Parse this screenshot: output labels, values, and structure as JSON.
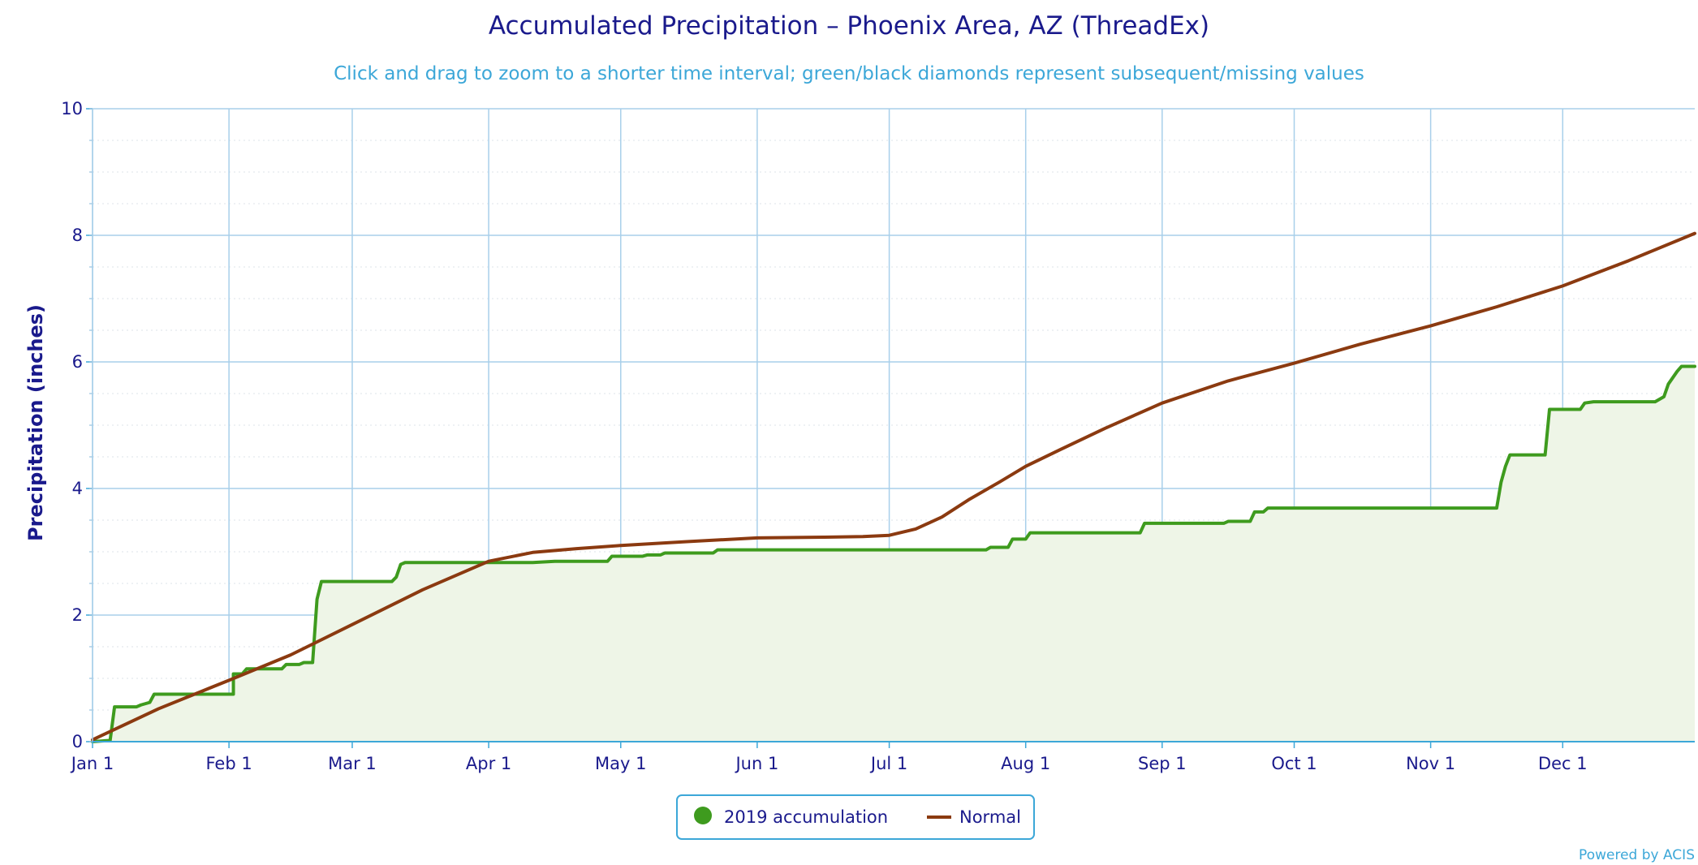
{
  "chart_data": {
    "type": "area",
    "title": "Accumulated Precipitation – Phoenix Area, AZ (ThreadEx)",
    "subtitle": "Click and drag to zoom to a shorter time interval; green/black diamonds represent subsequent/missing values",
    "xlabel": "",
    "ylabel": "Precipitation (inches)",
    "ylim": [
      0,
      10
    ],
    "yticks": [
      "0",
      "2",
      "4",
      "6",
      "8",
      "10"
    ],
    "xticks": [
      {
        "label": "Jan 1",
        "day": 0
      },
      {
        "label": "Feb 1",
        "day": 31
      },
      {
        "label": "Mar 1",
        "day": 59
      },
      {
        "label": "Apr 1",
        "day": 90
      },
      {
        "label": "May 1",
        "day": 120
      },
      {
        "label": "Jun 1",
        "day": 151
      },
      {
        "label": "Jul 1",
        "day": 181
      },
      {
        "label": "Aug 1",
        "day": 212
      },
      {
        "label": "Sep 1",
        "day": 243
      },
      {
        "label": "Oct 1",
        "day": 273
      },
      {
        "label": "Nov 1",
        "day": 304
      },
      {
        "label": "Dec 1",
        "day": 334
      }
    ],
    "xrange_days": [
      0,
      364
    ],
    "grid": true,
    "legend_position": "bottom-center",
    "series": [
      {
        "name": "2019 accumulation",
        "color": "#3e9b1e",
        "fill": "#eef5e7",
        "style": "step-area",
        "points": [
          [
            0,
            0.0
          ],
          [
            4,
            0.02
          ],
          [
            5,
            0.55
          ],
          [
            10,
            0.55
          ],
          [
            10,
            0.55
          ],
          [
            11,
            0.58
          ],
          [
            13,
            0.62
          ],
          [
            14,
            0.75
          ],
          [
            32,
            0.75
          ],
          [
            32,
            1.07
          ],
          [
            34,
            1.07
          ],
          [
            35,
            1.15
          ],
          [
            43,
            1.15
          ],
          [
            44,
            1.22
          ],
          [
            47,
            1.22
          ],
          [
            48,
            1.25
          ],
          [
            50,
            1.25
          ],
          [
            51,
            2.25
          ],
          [
            52,
            2.53
          ],
          [
            68,
            2.53
          ],
          [
            69,
            2.6
          ],
          [
            70,
            2.8
          ],
          [
            71,
            2.83
          ],
          [
            100,
            2.83
          ],
          [
            105,
            2.85
          ],
          [
            117,
            2.85
          ],
          [
            118,
            2.93
          ],
          [
            125,
            2.93
          ],
          [
            126,
            2.95
          ],
          [
            129,
            2.95
          ],
          [
            130,
            2.98
          ],
          [
            141,
            2.98
          ],
          [
            142,
            3.03
          ],
          [
            203,
            3.03
          ],
          [
            204,
            3.07
          ],
          [
            208,
            3.07
          ],
          [
            209,
            3.2
          ],
          [
            212,
            3.2
          ],
          [
            213,
            3.3
          ],
          [
            238,
            3.3
          ],
          [
            239,
            3.45
          ],
          [
            257,
            3.45
          ],
          [
            258,
            3.48
          ],
          [
            263,
            3.48
          ],
          [
            264,
            3.63
          ],
          [
            266,
            3.63
          ],
          [
            267,
            3.69
          ],
          [
            319,
            3.69
          ],
          [
            320,
            4.1
          ],
          [
            321,
            4.35
          ],
          [
            322,
            4.53
          ],
          [
            330,
            4.53
          ],
          [
            331,
            5.25
          ],
          [
            338,
            5.25
          ],
          [
            339,
            5.35
          ],
          [
            341,
            5.37
          ],
          [
            355,
            5.37
          ],
          [
            357,
            5.45
          ],
          [
            358,
            5.65
          ],
          [
            360,
            5.85
          ],
          [
            361,
            5.93
          ],
          [
            364,
            5.93
          ]
        ]
      },
      {
        "name": "Normal",
        "color": "#8b3a10",
        "style": "line",
        "points": [
          [
            0,
            0.03
          ],
          [
            15,
            0.52
          ],
          [
            31,
            0.97
          ],
          [
            45,
            1.37
          ],
          [
            59,
            1.85
          ],
          [
            75,
            2.4
          ],
          [
            90,
            2.85
          ],
          [
            100,
            2.99
          ],
          [
            110,
            3.05
          ],
          [
            120,
            3.1
          ],
          [
            135,
            3.16
          ],
          [
            151,
            3.22
          ],
          [
            166,
            3.23
          ],
          [
            175,
            3.24
          ],
          [
            181,
            3.26
          ],
          [
            187,
            3.36
          ],
          [
            193,
            3.55
          ],
          [
            199,
            3.82
          ],
          [
            206,
            4.1
          ],
          [
            212,
            4.35
          ],
          [
            220,
            4.62
          ],
          [
            230,
            4.95
          ],
          [
            243,
            5.35
          ],
          [
            258,
            5.7
          ],
          [
            273,
            5.98
          ],
          [
            288,
            6.28
          ],
          [
            304,
            6.57
          ],
          [
            319,
            6.87
          ],
          [
            334,
            7.2
          ],
          [
            349,
            7.6
          ],
          [
            364,
            8.03
          ]
        ]
      }
    ],
    "credit": "Powered by ACIS"
  }
}
